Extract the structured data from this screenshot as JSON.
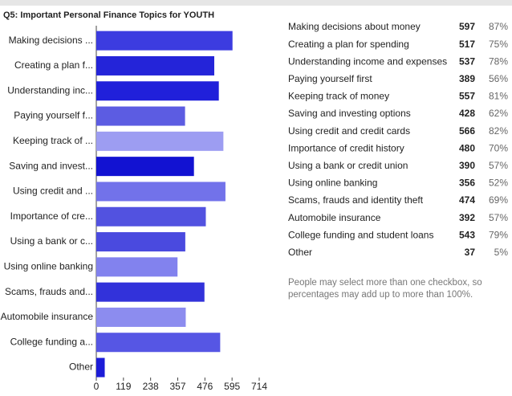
{
  "chart_data": {
    "type": "bar",
    "orientation": "horizontal",
    "title": "Q5: Important Personal Finance Topics for YOUTH",
    "categories": [
      "Making decisions ...",
      "Creating a plan f...",
      "Understanding inc...",
      "Paying yourself f...",
      "Keeping track of ...",
      "Saving and invest...",
      "Using credit and ...",
      "Importance of cre...",
      "Using a bank or c...",
      "Using online banking",
      "Scams, frauds and...",
      "Automobile insurance",
      "College funding a...",
      "Other"
    ],
    "values": [
      597,
      517,
      537,
      389,
      557,
      428,
      566,
      480,
      390,
      356,
      474,
      392,
      543,
      37
    ],
    "colors": [
      "#3c3ce0",
      "#2424d9",
      "#2020da",
      "#5c5ce2",
      "#9d9df2",
      "#1212d2",
      "#7272ea",
      "#5252e0",
      "#4a4adf",
      "#8282ee",
      "#3232da",
      "#8c8cef",
      "#5656e4",
      "#1c1cd8"
    ],
    "xlim": [
      0,
      714
    ],
    "xticks": [
      0,
      119,
      238,
      357,
      476,
      595,
      714
    ],
    "grid": false
  },
  "table": {
    "rows": [
      [
        "Making decisions about money",
        597,
        "87%"
      ],
      [
        "Creating a plan for spending",
        517,
        "75%"
      ],
      [
        "Understanding income and expenses",
        537,
        "78%"
      ],
      [
        "Paying yourself first",
        389,
        "56%"
      ],
      [
        "Keeping track of money",
        557,
        "81%"
      ],
      [
        "Saving and investing options",
        428,
        "62%"
      ],
      [
        "Using credit and credit cards",
        566,
        "82%"
      ],
      [
        "Importance of credit history",
        480,
        "70%"
      ],
      [
        "Using a bank or credit union",
        390,
        "57%"
      ],
      [
        "Using online banking",
        356,
        "52%"
      ],
      [
        "Scams, frauds and identity theft",
        474,
        "69%"
      ],
      [
        "Automobile insurance",
        392,
        "57%"
      ],
      [
        "College funding and student loans",
        543,
        "79%"
      ],
      [
        "Other",
        37,
        "5%"
      ]
    ],
    "note": [
      "People may select more than one checkbox, so",
      "percentages may add up to more than 100%."
    ]
  }
}
